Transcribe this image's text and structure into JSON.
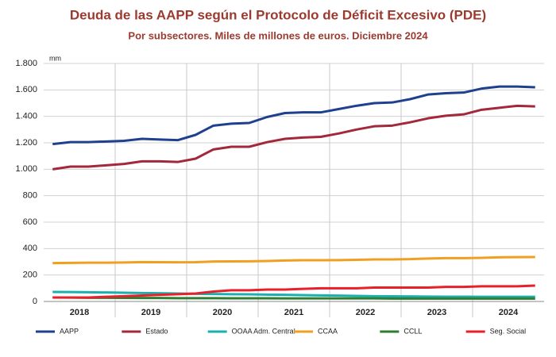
{
  "chart_data": {
    "type": "line",
    "title": "Deuda de las AAPP según el Protocolo de Déficit Excesivo (PDE)",
    "subtitle": "Por subsectores. Miles de millones de euros. Diciembre 2024",
    "y_unit": "mm",
    "categories": [
      "2018",
      null,
      null,
      null,
      "2019",
      null,
      null,
      null,
      "2020",
      null,
      null,
      null,
      "2021",
      null,
      null,
      null,
      "2022",
      null,
      null,
      null,
      "2023",
      null,
      null,
      null,
      "2024",
      null,
      null,
      null
    ],
    "ylim": [
      0,
      1800
    ],
    "yticks": [
      0,
      200,
      400,
      600,
      800,
      {
        "value": 1000,
        "label": "1.000"
      },
      {
        "value": 1200,
        "label": "1.200"
      },
      {
        "value": 1400,
        "label": "1.400"
      },
      {
        "value": 1600,
        "label": "1.600"
      },
      {
        "value": 1800,
        "label": "1.800"
      }
    ],
    "grid": true,
    "legend": "bottom",
    "series": [
      {
        "name": "AAPP",
        "color": "#1f3f8f",
        "values": [
          1190,
          1205,
          1205,
          1210,
          1215,
          1230,
          1225,
          1220,
          1260,
          1330,
          1345,
          1350,
          1395,
          1425,
          1430,
          1430,
          1455,
          1480,
          1500,
          1505,
          1530,
          1565,
          1575,
          1580,
          1610,
          1625,
          1625,
          1620
        ]
      },
      {
        "name": "Estado",
        "color": "#a3283b",
        "values": [
          1000,
          1020,
          1020,
          1030,
          1040,
          1060,
          1060,
          1055,
          1080,
          1150,
          1170,
          1170,
          1205,
          1230,
          1240,
          1245,
          1270,
          1300,
          1325,
          1330,
          1355,
          1385,
          1405,
          1415,
          1450,
          1465,
          1480,
          1475
        ]
      },
      {
        "name": "OOAA Adm. Central",
        "color": "#1ab0b0",
        "values": [
          72,
          71,
          70,
          68,
          66,
          64,
          62,
          60,
          58,
          56,
          55,
          54,
          52,
          50,
          48,
          46,
          44,
          42,
          40,
          39,
          38,
          37,
          36,
          36,
          35,
          35,
          35,
          35
        ]
      },
      {
        "name": "CCAA",
        "color": "#f0a020",
        "values": [
          290,
          292,
          293,
          293,
          295,
          298,
          297,
          296,
          297,
          302,
          303,
          304,
          306,
          310,
          312,
          312,
          313,
          315,
          318,
          318,
          320,
          325,
          328,
          328,
          330,
          334,
          335,
          336
        ]
      },
      {
        "name": "CCLL",
        "color": "#2e7d32",
        "values": [
          30,
          29,
          28,
          28,
          27,
          26,
          26,
          25,
          25,
          25,
          24,
          24,
          24,
          23,
          23,
          23,
          23,
          23,
          23,
          22,
          22,
          22,
          22,
          22,
          22,
          22,
          22,
          22
        ]
      },
      {
        "name": "Seg. Social",
        "color": "#e8202a",
        "values": [
          30,
          30,
          30,
          35,
          40,
          45,
          50,
          55,
          60,
          75,
          85,
          85,
          90,
          90,
          95,
          100,
          100,
          100,
          105,
          105,
          105,
          105,
          110,
          110,
          115,
          115,
          115,
          120
        ]
      }
    ]
  }
}
